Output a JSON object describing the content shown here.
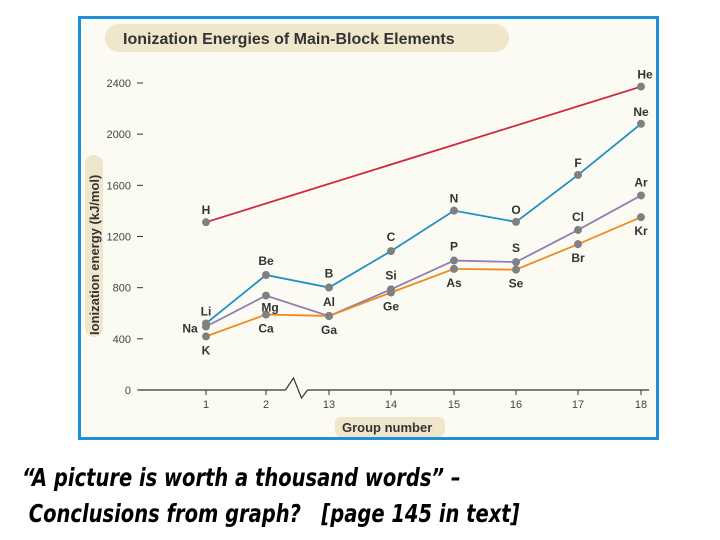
{
  "chart_data": {
    "type": "line",
    "title": "Ionization Energies of Main-Block Elements",
    "xlabel": "Group number",
    "ylabel": "Ionization energy (kJ/mol)",
    "ylim": [
      0,
      2400
    ],
    "yticks": [
      "0",
      "400",
      "800",
      "1200",
      "1600",
      "2000",
      "2400"
    ],
    "yticks_values": [
      0,
      400,
      800,
      1200,
      1600,
      2000,
      2400
    ],
    "categories": [
      "1",
      "2",
      "13",
      "14",
      "15",
      "16",
      "17",
      "18"
    ],
    "axis_break_between": [
      "2",
      "13"
    ],
    "grid": false,
    "colors": {
      "frame": "#1f8fd8",
      "title_band": "#efe6cc",
      "plot_bg": "#fbfbf4",
      "axis": "#333333",
      "marker": "#808080"
    },
    "series": [
      {
        "color": "#d2283c",
        "points": [
          {
            "group": "1",
            "label": "H",
            "value": 1312
          },
          {
            "group": "18",
            "label": "He",
            "value": 2372
          }
        ]
      },
      {
        "color": "#1f8fc4",
        "points": [
          {
            "group": "1",
            "label": "Li",
            "value": 520
          },
          {
            "group": "2",
            "label": "Be",
            "value": 899
          },
          {
            "group": "13",
            "label": "B",
            "value": 801
          },
          {
            "group": "14",
            "label": "C",
            "value": 1086
          },
          {
            "group": "15",
            "label": "N",
            "value": 1402
          },
          {
            "group": "16",
            "label": "O",
            "value": 1314
          },
          {
            "group": "17",
            "label": "F",
            "value": 1681
          },
          {
            "group": "18",
            "label": "Ne",
            "value": 2081
          }
        ]
      },
      {
        "color": "#8f7fb3",
        "points": [
          {
            "group": "1",
            "label": "Na",
            "value": 496
          },
          {
            "group": "2",
            "label": "Mg",
            "value": 738
          },
          {
            "group": "13",
            "label": "Al",
            "value": 578
          },
          {
            "group": "14",
            "label": "Si",
            "value": 787
          },
          {
            "group": "15",
            "label": "P",
            "value": 1012
          },
          {
            "group": "16",
            "label": "S",
            "value": 1000
          },
          {
            "group": "17",
            "label": "Cl",
            "value": 1251
          },
          {
            "group": "18",
            "label": "Ar",
            "value": 1521
          }
        ]
      },
      {
        "color": "#ef8a1e",
        "points": [
          {
            "group": "1",
            "label": "K",
            "value": 419
          },
          {
            "group": "2",
            "label": "Ca",
            "value": 590
          },
          {
            "group": "13",
            "label": "Ga",
            "value": 579
          },
          {
            "group": "14",
            "label": "Ge",
            "value": 762
          },
          {
            "group": "15",
            "label": "As",
            "value": 947
          },
          {
            "group": "16",
            "label": "Se",
            "value": 941
          },
          {
            "group": "17",
            "label": "Br",
            "value": 1140
          },
          {
            "group": "18",
            "label": "Kr",
            "value": 1351
          }
        ]
      }
    ]
  },
  "caption": {
    "line1": "“A picture is worth a thousand words” –",
    "line2": " Conclusions from graph?   [page 145 in text]"
  }
}
